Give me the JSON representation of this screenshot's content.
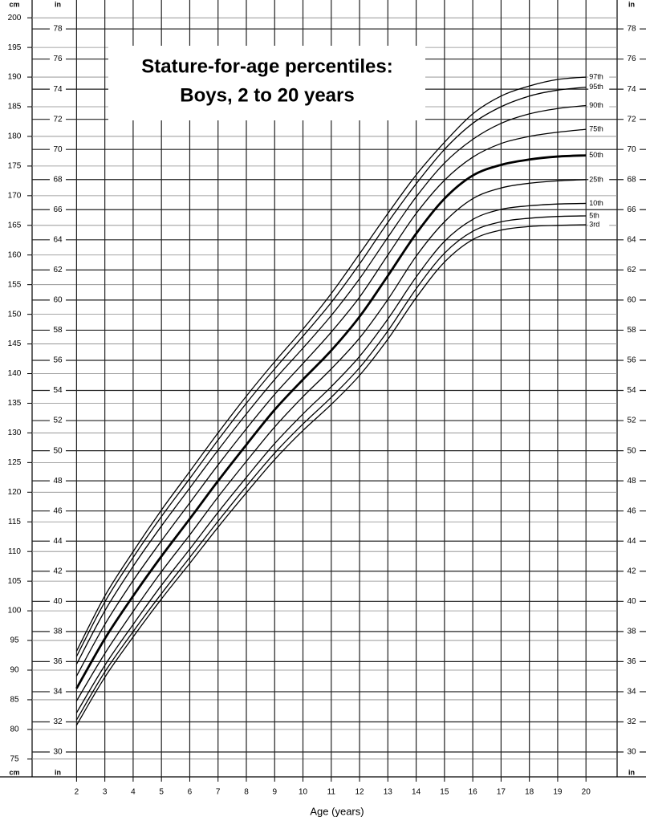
{
  "chart_data": {
    "type": "line",
    "title": "Stature-for-age percentiles:",
    "subtitle": "Boys, 2 to 20 years",
    "x_label": "Age (years)",
    "y_unit_label": "cm",
    "y2_unit_label": "in",
    "x": [
      2,
      3,
      4,
      5,
      6,
      7,
      8,
      9,
      10,
      11,
      12,
      13,
      14,
      15,
      16,
      17,
      18,
      19,
      20
    ],
    "xlim": [
      0.6,
      21.1
    ],
    "xticks": [
      2,
      3,
      4,
      5,
      6,
      7,
      8,
      9,
      10,
      11,
      12,
      13,
      14,
      15,
      16,
      17,
      18,
      19,
      20
    ],
    "ylim": [
      72,
      203
    ],
    "yticks": [
      75,
      80,
      85,
      90,
      95,
      100,
      105,
      110,
      115,
      120,
      125,
      130,
      135,
      140,
      145,
      150,
      155,
      160,
      165,
      170,
      175,
      180,
      185,
      190,
      195,
      200
    ],
    "y2lim": [
      28.35,
      79.92
    ],
    "y2ticks": [
      30,
      32,
      34,
      36,
      38,
      40,
      42,
      44,
      46,
      48,
      50,
      52,
      54,
      56,
      58,
      60,
      62,
      64,
      66,
      68,
      70,
      72,
      74,
      76,
      78
    ],
    "grid": true,
    "series": [
      {
        "name": "97th",
        "color": "#000000",
        "width": 1.3,
        "values": [
          93.2,
          102.5,
          110.0,
          117.0,
          123.5,
          130.0,
          136.2,
          142.0,
          147.5,
          153.5,
          160.2,
          167.0,
          173.5,
          179.0,
          183.8,
          186.8,
          188.5,
          189.6,
          190.0
        ]
      },
      {
        "name": "95th",
        "color": "#000000",
        "width": 1.3,
        "values": [
          92.3,
          101.5,
          109.0,
          115.9,
          122.3,
          128.8,
          135.0,
          140.8,
          146.3,
          152.0,
          158.5,
          165.5,
          172.0,
          177.8,
          182.2,
          185.0,
          186.8,
          187.8,
          188.3
        ]
      },
      {
        "name": "90th",
        "color": "#000000",
        "width": 1.3,
        "values": [
          91.0,
          100.0,
          107.5,
          114.3,
          120.7,
          127.1,
          133.2,
          139.0,
          144.3,
          149.8,
          156.0,
          163.0,
          169.8,
          175.5,
          179.5,
          182.2,
          183.8,
          184.7,
          185.2
        ]
      },
      {
        "name": "75th",
        "color": "#000000",
        "width": 1.3,
        "values": [
          89.0,
          97.7,
          105.1,
          111.8,
          118.2,
          124.6,
          130.7,
          136.5,
          141.7,
          147.0,
          152.9,
          160.0,
          167.0,
          172.6,
          176.5,
          178.8,
          180.0,
          180.7,
          181.2
        ]
      },
      {
        "name": "50th",
        "color": "#000000",
        "width": 2.8,
        "values": [
          86.9,
          95.3,
          102.5,
          109.2,
          115.5,
          121.9,
          128.0,
          133.9,
          139.0,
          143.9,
          149.6,
          156.5,
          163.6,
          169.5,
          173.4,
          175.2,
          176.1,
          176.6,
          176.8
        ]
      },
      {
        "name": "25th",
        "color": "#000000",
        "width": 1.3,
        "values": [
          84.8,
          92.8,
          99.9,
          106.6,
          112.8,
          119.2,
          125.2,
          131.0,
          136.1,
          140.8,
          146.0,
          152.5,
          159.8,
          165.6,
          169.5,
          171.3,
          172.1,
          172.5,
          172.7
        ]
      },
      {
        "name": "10th",
        "color": "#000000",
        "width": 1.3,
        "values": [
          82.8,
          90.8,
          97.7,
          104.3,
          110.4,
          116.6,
          122.5,
          128.2,
          133.2,
          137.8,
          142.9,
          149.2,
          156.3,
          162.3,
          166.0,
          167.7,
          168.3,
          168.6,
          168.7
        ]
      },
      {
        "name": "5th",
        "color": "#000000",
        "width": 1.3,
        "values": [
          81.6,
          89.7,
          96.5,
          102.9,
          109.0,
          115.1,
          121.0,
          126.6,
          131.5,
          136.0,
          141.0,
          147.2,
          154.3,
          160.3,
          164.0,
          165.6,
          166.2,
          166.5,
          166.6
        ]
      },
      {
        "name": "3rd",
        "color": "#000000",
        "width": 1.3,
        "values": [
          80.7,
          88.8,
          95.6,
          102.0,
          108.0,
          114.1,
          119.9,
          125.5,
          130.4,
          134.8,
          139.7,
          145.8,
          152.8,
          158.8,
          162.6,
          164.2,
          164.8,
          165.0,
          165.1
        ]
      }
    ]
  }
}
